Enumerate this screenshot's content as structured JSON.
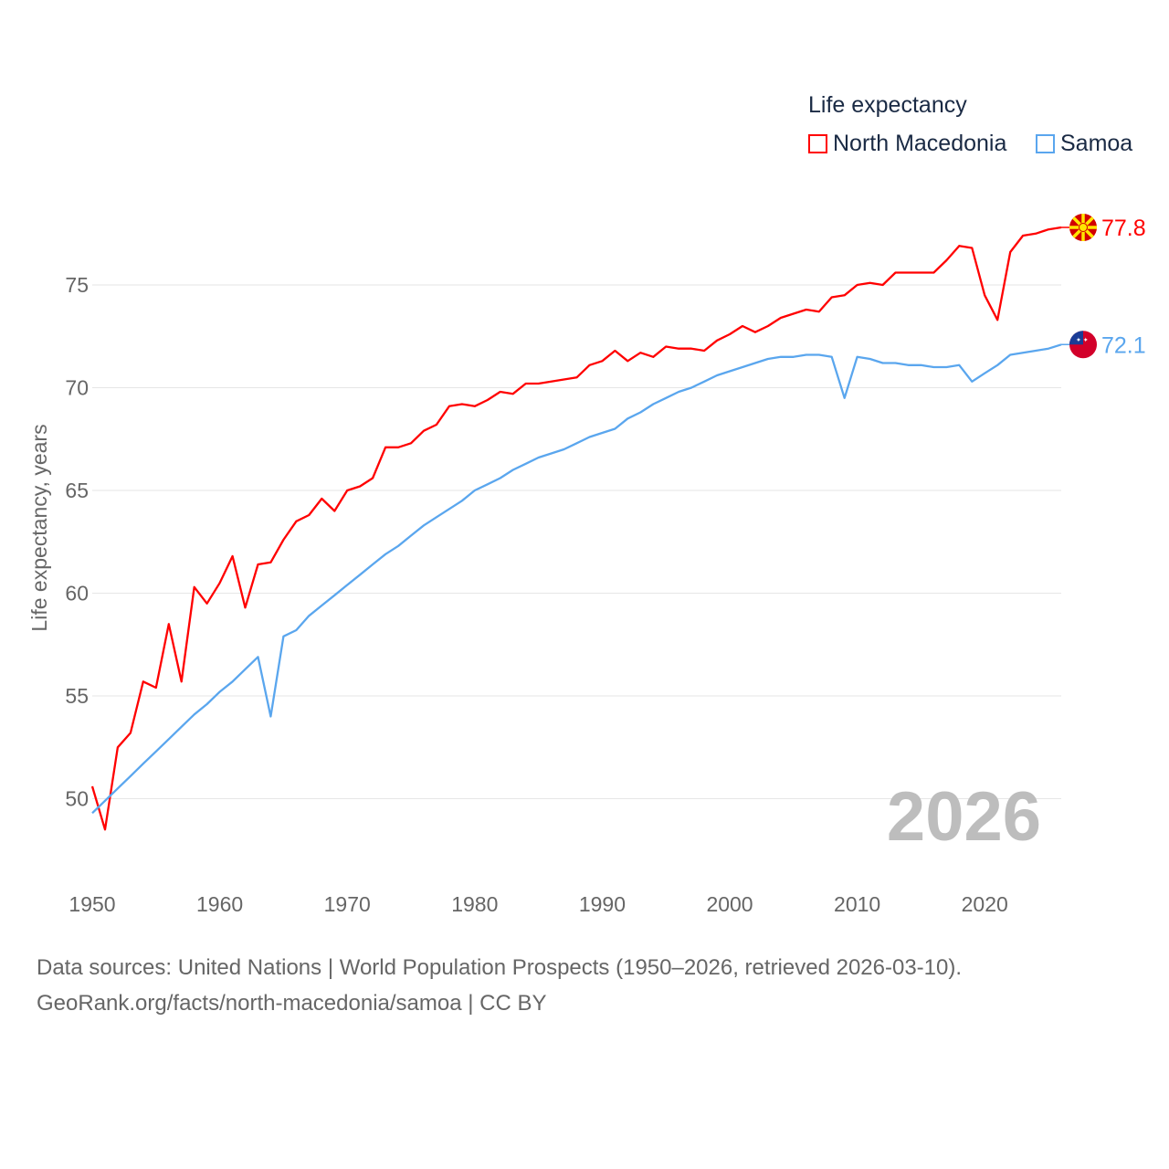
{
  "legend": {
    "title": "Life expectancy",
    "items": [
      {
        "label": "North Macedonia",
        "color": "#ff0000"
      },
      {
        "label": "Samoa",
        "color": "#5aa6ee"
      }
    ]
  },
  "year_watermark": "2026",
  "footer": {
    "line1": "Data sources: United Nations | World Population Prospects (1950–2026, retrieved 2026-03-10).",
    "line2": "GeoRank.org/facts/north-macedonia/samoa | CC BY"
  },
  "chart_data": {
    "type": "line",
    "title": "Life expectancy",
    "xlabel": "",
    "ylabel": "Life expectancy, years",
    "xlim": [
      1950,
      2026
    ],
    "ylim": [
      47.5,
      78.5
    ],
    "x_ticks": [
      1950,
      1960,
      1970,
      1980,
      1990,
      2000,
      2010,
      2020
    ],
    "y_ticks": [
      50,
      55,
      60,
      65,
      70,
      75
    ],
    "grid": true,
    "legend_position": "top-right",
    "x_start": 1950,
    "series": [
      {
        "name": "North Macedonia",
        "color": "#ff0000",
        "end_label": "77.8",
        "flag": "north-macedonia-flag-icon",
        "values": [
          50.6,
          48.5,
          52.5,
          53.2,
          55.7,
          55.4,
          58.5,
          55.7,
          60.3,
          59.5,
          60.5,
          61.8,
          59.3,
          61.4,
          61.5,
          62.6,
          63.5,
          63.8,
          64.6,
          64.0,
          65.0,
          65.2,
          65.6,
          67.1,
          67.1,
          67.3,
          67.9,
          68.2,
          69.1,
          69.2,
          69.1,
          69.4,
          69.8,
          69.7,
          70.2,
          70.2,
          70.3,
          70.4,
          70.5,
          71.1,
          71.3,
          71.8,
          71.3,
          71.7,
          71.5,
          72.0,
          71.9,
          71.9,
          71.8,
          72.3,
          72.6,
          73.0,
          72.7,
          73.0,
          73.4,
          73.6,
          73.8,
          73.7,
          74.4,
          74.5,
          75.0,
          75.1,
          75.0,
          75.6,
          75.6,
          75.6,
          75.6,
          76.2,
          76.9,
          76.8,
          74.5,
          73.3,
          76.6,
          77.4,
          77.5,
          77.7,
          77.8
        ]
      },
      {
        "name": "Samoa",
        "color": "#5aa6ee",
        "end_label": "72.1",
        "flag": "samoa-flag-icon",
        "values": [
          49.3,
          49.9,
          50.5,
          51.1,
          51.7,
          52.3,
          52.9,
          53.5,
          54.1,
          54.6,
          55.2,
          55.7,
          56.3,
          56.9,
          54.0,
          57.9,
          58.2,
          58.9,
          59.4,
          59.9,
          60.4,
          60.9,
          61.4,
          61.9,
          62.3,
          62.8,
          63.3,
          63.7,
          64.1,
          64.5,
          65.0,
          65.3,
          65.6,
          66.0,
          66.3,
          66.6,
          66.8,
          67.0,
          67.3,
          67.6,
          67.8,
          68.0,
          68.5,
          68.8,
          69.2,
          69.5,
          69.8,
          70.0,
          70.3,
          70.6,
          70.8,
          71.0,
          71.2,
          71.4,
          71.5,
          71.5,
          71.6,
          71.6,
          71.5,
          69.5,
          71.5,
          71.4,
          71.2,
          71.2,
          71.1,
          71.1,
          71.0,
          71.0,
          71.1,
          70.3,
          70.7,
          71.1,
          71.6,
          71.7,
          71.8,
          71.9,
          72.1
        ]
      }
    ]
  }
}
